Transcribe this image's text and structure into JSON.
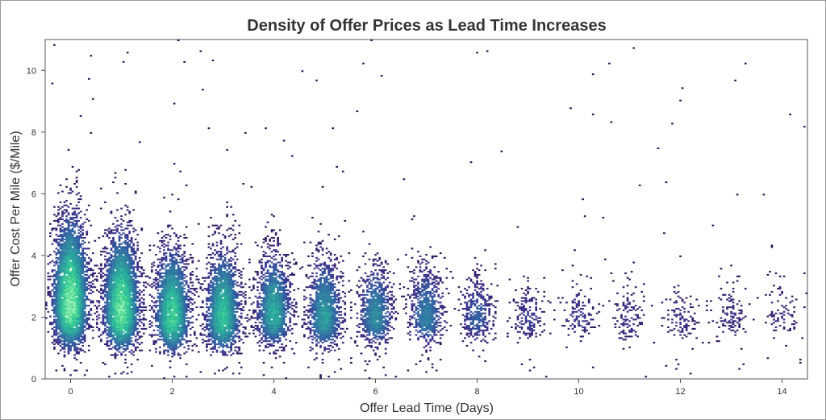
{
  "chart_data": {
    "type": "heatmap",
    "title": "Density of Offer Prices as Lead Time Increases",
    "xlabel": "Offer Lead Time (Days)",
    "ylabel": "Offer Cost Per Mile ($/Mile)",
    "xlim": [
      -0.5,
      14.5
    ],
    "ylim": [
      0,
      11
    ],
    "xticks": [
      0,
      2,
      4,
      6,
      8,
      10,
      12,
      14
    ],
    "yticks": [
      0,
      2,
      4,
      6,
      8,
      10
    ],
    "grid": false,
    "colormap": [
      "#2a0f4f",
      "#3b2b86",
      "#2f5fa3",
      "#2a8c9d",
      "#25b49a",
      "#3fd38f",
      "#8ff0b0"
    ],
    "clusters": [
      {
        "day": 0,
        "center": 2.3,
        "spread": 1.1,
        "top": 10.8,
        "relative_density": 1.0
      },
      {
        "day": 1,
        "center": 2.1,
        "spread": 1.0,
        "top": 10.5,
        "relative_density": 0.95
      },
      {
        "day": 2,
        "center": 1.9,
        "spread": 0.9,
        "top": 8.5,
        "relative_density": 0.8
      },
      {
        "day": 3,
        "center": 1.9,
        "spread": 0.9,
        "top": 8.0,
        "relative_density": 0.72
      },
      {
        "day": 4,
        "center": 2.0,
        "spread": 0.8,
        "top": 7.5,
        "relative_density": 0.62
      },
      {
        "day": 5,
        "center": 1.9,
        "spread": 0.8,
        "top": 6.5,
        "relative_density": 0.55
      },
      {
        "day": 6,
        "center": 1.9,
        "spread": 0.7,
        "top": 6.0,
        "relative_density": 0.48
      },
      {
        "day": 7,
        "center": 1.9,
        "spread": 0.7,
        "top": 5.5,
        "relative_density": 0.42
      },
      {
        "day": 8,
        "center": 1.9,
        "spread": 0.6,
        "top": 4.5,
        "relative_density": 0.3
      },
      {
        "day": 9,
        "center": 1.8,
        "spread": 0.5,
        "top": 3.5,
        "relative_density": 0.2
      },
      {
        "day": 10,
        "center": 1.9,
        "spread": 0.5,
        "top": 4.0,
        "relative_density": 0.18
      },
      {
        "day": 11,
        "center": 1.8,
        "spread": 0.5,
        "top": 3.8,
        "relative_density": 0.16
      },
      {
        "day": 12,
        "center": 1.8,
        "spread": 0.5,
        "top": 4.0,
        "relative_density": 0.15
      },
      {
        "day": 13,
        "center": 1.9,
        "spread": 0.5,
        "top": 4.0,
        "relative_density": 0.14
      },
      {
        "day": 14,
        "center": 1.9,
        "spread": 0.5,
        "top": 4.0,
        "relative_density": 0.14
      }
    ],
    "floor_value": 1.0
  }
}
